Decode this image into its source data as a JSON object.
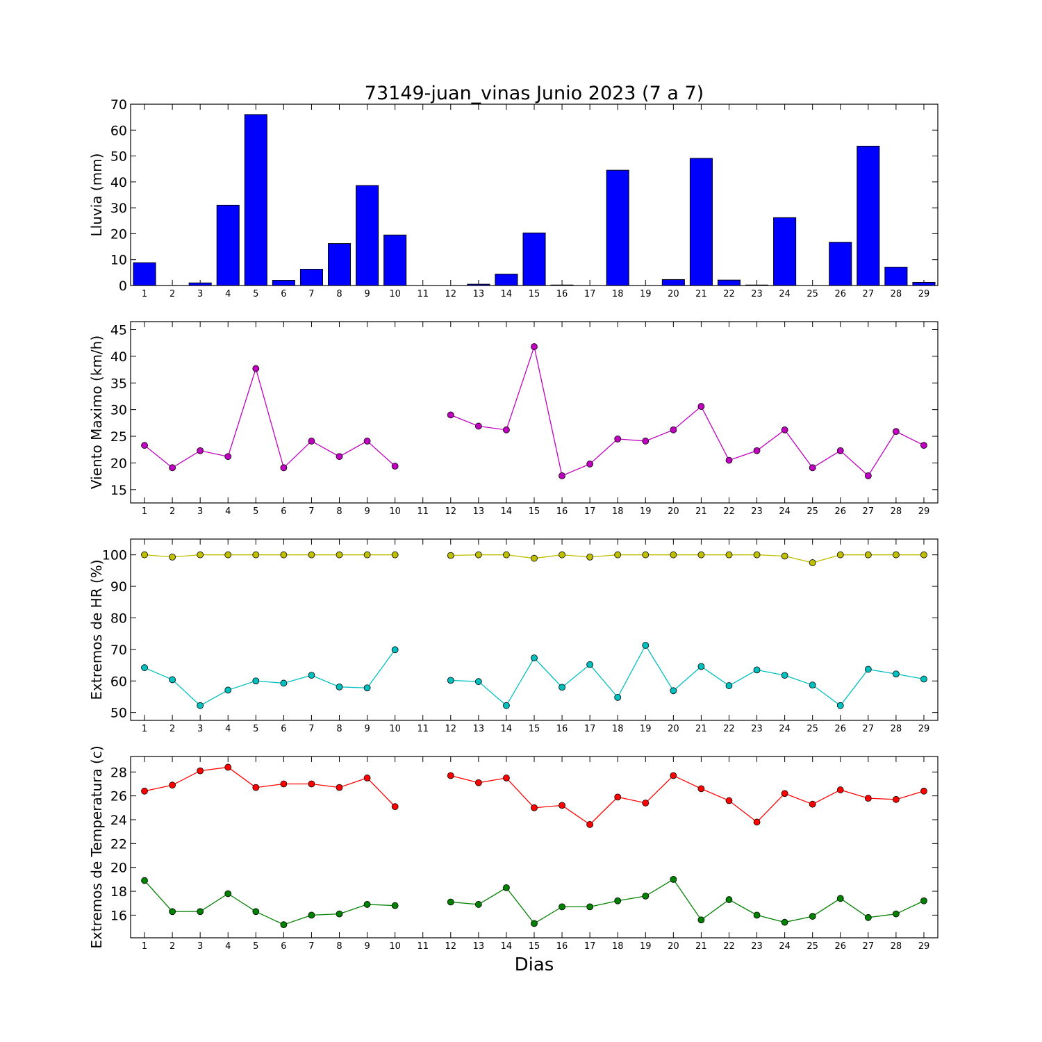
{
  "chart_data": {
    "title": "73149-juan_vinas Junio 2023  (7 a 7)",
    "xlabel": "Dias",
    "x": [
      1,
      2,
      3,
      4,
      5,
      6,
      7,
      8,
      9,
      10,
      11,
      12,
      13,
      14,
      15,
      16,
      17,
      18,
      19,
      20,
      21,
      22,
      23,
      24,
      25,
      26,
      27,
      28,
      29
    ],
    "panels": [
      {
        "type": "bar",
        "ylabel": "Lluvia (mm)",
        "ylim": [
          0,
          70
        ],
        "yticks": [
          0,
          10,
          20,
          30,
          40,
          50,
          60,
          70
        ],
        "series": [
          {
            "color": "#0000ff",
            "values": [
              8.8,
              0,
              1,
              31,
              66,
              2,
              6.3,
              16.2,
              38.6,
              19.5,
              0,
              0,
              0.5,
              4.4,
              20.3,
              0.2,
              0,
              44.5,
              0,
              2.3,
              49.1,
              2.1,
              0.2,
              26.2,
              0,
              16.7,
              53.8,
              7.1,
              1.2
            ]
          }
        ]
      },
      {
        "type": "line",
        "ylabel": "Viento Maximo (km/h)",
        "ylim": [
          12.5,
          46.5
        ],
        "yticks": [
          15,
          20,
          25,
          30,
          35,
          40,
          45
        ],
        "series": [
          {
            "color": "#bf00bf",
            "values": [
              23.3,
              19.1,
              22.3,
              21.2,
              37.7,
              19.1,
              24.1,
              21.2,
              24.1,
              19.4,
              null,
              29,
              26.9,
              26.2,
              41.8,
              17.6,
              19.8,
              24.5,
              24.1,
              26.2,
              30.6,
              20.5,
              22.3,
              26.2,
              19.1,
              22.3,
              17.6,
              25.9,
              23.3
            ]
          }
        ]
      },
      {
        "type": "line",
        "ylabel": "Extremos de HR (%)",
        "ylim": [
          47.5,
          105
        ],
        "yticks": [
          50,
          60,
          70,
          80,
          90,
          100
        ],
        "series": [
          {
            "color": "#bfbf00",
            "values": [
              100,
              99.3,
              100,
              100,
              100,
              100,
              100,
              100,
              100,
              100,
              null,
              99.8,
              100,
              100,
              98.9,
              100,
              99.3,
              100,
              100,
              100,
              100,
              100,
              100,
              99.6,
              97.5,
              100,
              100,
              100,
              100
            ]
          },
          {
            "color": "#00bfbf",
            "values": [
              64.2,
              60.4,
              52.2,
              57.1,
              60,
              59.3,
              61.8,
              58.1,
              57.8,
              69.9,
              null,
              60.2,
              59.8,
              52.2,
              67.3,
              58,
              65.2,
              54.8,
              71.3,
              56.9,
              64.6,
              58.5,
              63.5,
              61.8,
              58.7,
              52.2,
              63.7,
              62.2,
              60.6
            ]
          }
        ]
      },
      {
        "type": "line",
        "ylabel": "Extremos de Temperatura (c)",
        "ylim": [
          14.1,
          29.3
        ],
        "yticks": [
          16,
          18,
          20,
          22,
          24,
          26,
          28
        ],
        "series": [
          {
            "color": "#ff0000",
            "values": [
              26.4,
              26.9,
              28.1,
              28.4,
              26.7,
              27,
              27,
              26.7,
              27.5,
              25.1,
              null,
              27.7,
              27.1,
              27.5,
              25,
              25.2,
              23.6,
              25.9,
              25.4,
              27.7,
              26.6,
              25.6,
              23.8,
              26.2,
              25.3,
              26.5,
              25.8,
              25.7,
              26.4
            ]
          },
          {
            "color": "#008000",
            "values": [
              18.9,
              16.3,
              16.3,
              17.8,
              16.3,
              15.2,
              16,
              16.1,
              16.9,
              16.8,
              null,
              17.1,
              16.9,
              18.3,
              15.3,
              16.7,
              16.7,
              17.2,
              17.6,
              19,
              15.6,
              17.3,
              16,
              15.4,
              15.9,
              17.4,
              15.8,
              16.1,
              17.2
            ]
          }
        ]
      }
    ]
  }
}
